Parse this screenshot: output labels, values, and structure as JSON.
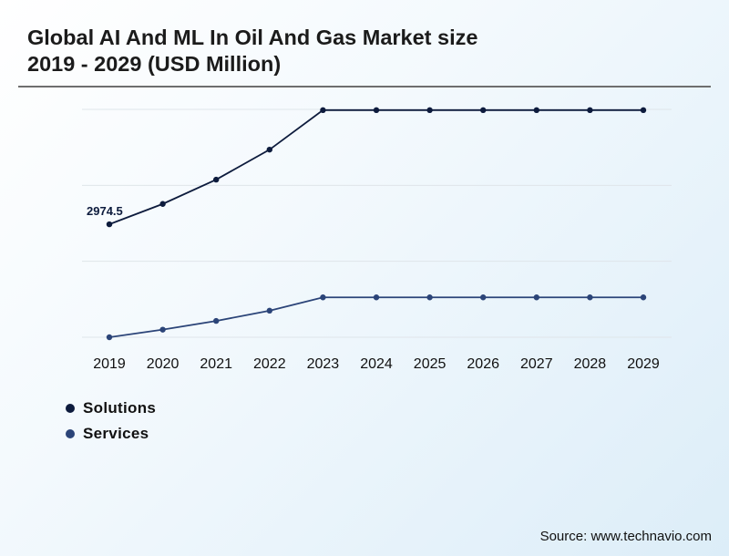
{
  "title": {
    "line1": "Global AI And ML In Oil And Gas Market size",
    "line2": "2019 - 2029 (USD Million)"
  },
  "source": "Source: www.technavio.com",
  "chart_data": {
    "type": "line",
    "categories": [
      "2019",
      "2020",
      "2021",
      "2022",
      "2023",
      "2024",
      "2025",
      "2026",
      "2027",
      "2028",
      "2029"
    ],
    "series": [
      {
        "name": "Solutions",
        "color": "#0d1b3d",
        "values": [
          2974.5,
          3510,
          4150,
          4940,
          5980,
          5980,
          5980,
          5980,
          5980,
          5980,
          5980
        ]
      },
      {
        "name": "Services",
        "color": "#2b4478",
        "values": [
          0,
          200,
          430,
          700,
          1050,
          1050,
          1050,
          1050,
          1050,
          1050,
          1050
        ]
      }
    ],
    "data_labels": [
      {
        "series": 0,
        "index": 0,
        "text": "2974.5"
      }
    ],
    "ylim": [
      0,
      6000
    ],
    "grid": true,
    "legend_position": "bottom-left"
  }
}
